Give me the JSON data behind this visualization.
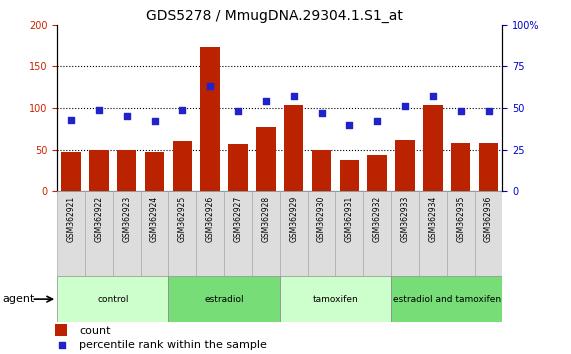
{
  "title": "GDS5278 / MmugDNA.29304.1.S1_at",
  "samples": [
    "GSM362921",
    "GSM362922",
    "GSM362923",
    "GSM362924",
    "GSM362925",
    "GSM362926",
    "GSM362927",
    "GSM362928",
    "GSM362929",
    "GSM362930",
    "GSM362931",
    "GSM362932",
    "GSM362933",
    "GSM362934",
    "GSM362935",
    "GSM362936"
  ],
  "counts": [
    47,
    50,
    50,
    47,
    60,
    173,
    57,
    77,
    103,
    50,
    38,
    43,
    62,
    103,
    58,
    58
  ],
  "percentiles": [
    43,
    49,
    45,
    42,
    49,
    63,
    48,
    54,
    57,
    47,
    40,
    42,
    51,
    57,
    48,
    48
  ],
  "bar_color": "#bb2200",
  "dot_color": "#2222cc",
  "left_ylim": [
    0,
    200
  ],
  "right_ylim": [
    0,
    100
  ],
  "left_yticks": [
    0,
    50,
    100,
    150,
    200
  ],
  "right_yticks": [
    0,
    25,
    50,
    75,
    100
  ],
  "right_yticklabels": [
    "0",
    "25",
    "50",
    "75",
    "100%"
  ],
  "grid_values": [
    50,
    100,
    150
  ],
  "agent_groups": [
    {
      "label": "control",
      "start": 0,
      "end": 3,
      "color": "#ccffcc"
    },
    {
      "label": "estradiol",
      "start": 4,
      "end": 7,
      "color": "#77dd77"
    },
    {
      "label": "tamoxifen",
      "start": 8,
      "end": 11,
      "color": "#ccffcc"
    },
    {
      "label": "estradiol and tamoxifen",
      "start": 12,
      "end": 15,
      "color": "#77dd77"
    }
  ],
  "agent_label": "agent",
  "legend_count_label": "count",
  "legend_pct_label": "percentile rank within the sample",
  "bg_color": "#ffffff",
  "plot_bg": "#ffffff",
  "tick_label_color_left": "#cc2200",
  "tick_label_color_right": "#0000cc",
  "title_fontsize": 10,
  "legend_fontsize": 8
}
